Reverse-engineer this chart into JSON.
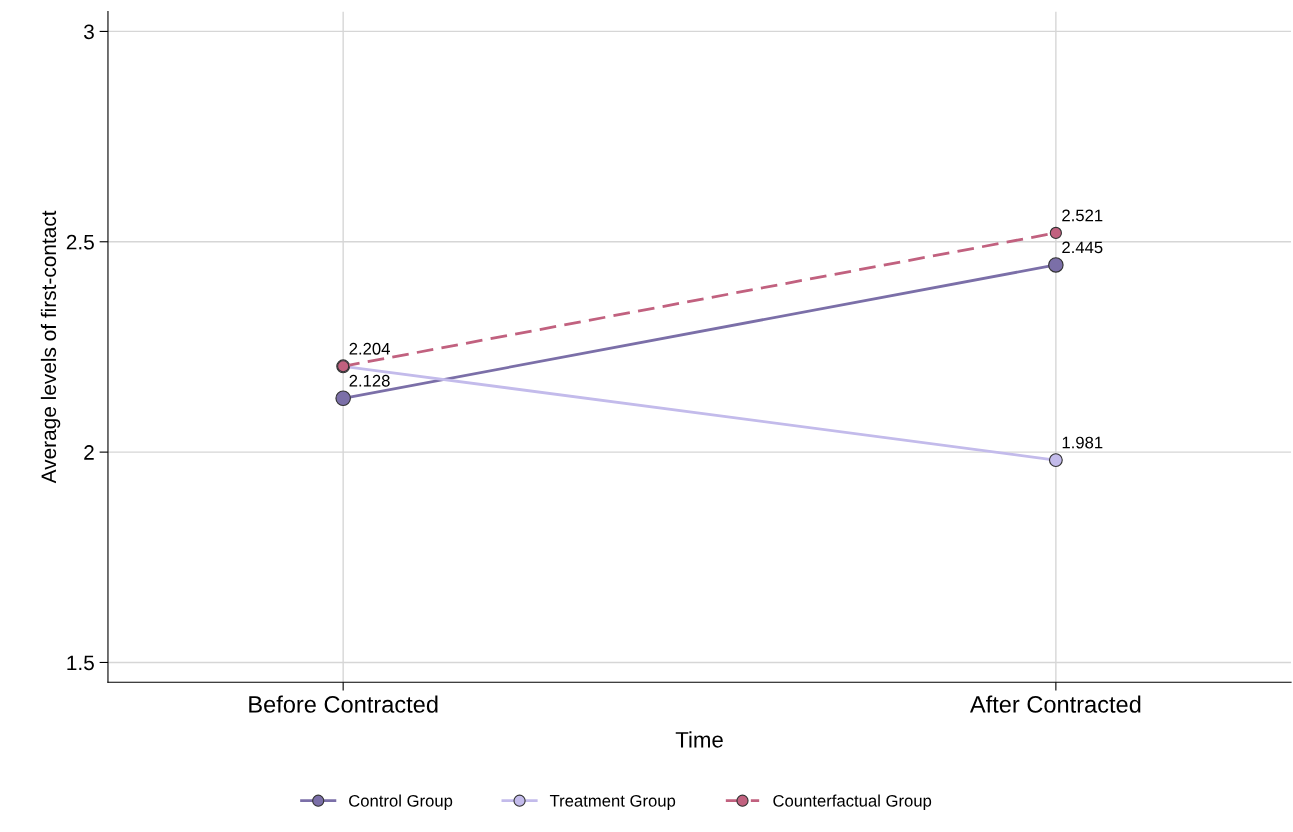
{
  "chart_data": {
    "type": "line",
    "xlabel": "Time",
    "ylabel": "Average levels of first-contact",
    "categories": [
      "Before Contracted",
      "After Contracted"
    ],
    "series": [
      {
        "name": "Control Group",
        "color": "#7b6fa8",
        "values": [
          2.128,
          2.445
        ],
        "value_labels": [
          "2.128",
          "2.445"
        ],
        "line_style": "solid"
      },
      {
        "name": "Treatment Group",
        "color": "#c3bbeb",
        "values": [
          2.204,
          1.981
        ],
        "value_labels": [
          null,
          "1.981"
        ],
        "line_style": "solid"
      },
      {
        "name": "Counterfactual Group",
        "color": "#c1617f",
        "values": [
          2.204,
          2.521
        ],
        "value_labels": [
          "2.204",
          "2.521"
        ],
        "line_style": "dashed"
      }
    ],
    "ylim": [
      1.453,
      3.047
    ],
    "yticks": [
      1.5,
      2,
      2.5,
      3
    ],
    "grid": true,
    "legend": "bottom",
    "marker": "circle"
  }
}
